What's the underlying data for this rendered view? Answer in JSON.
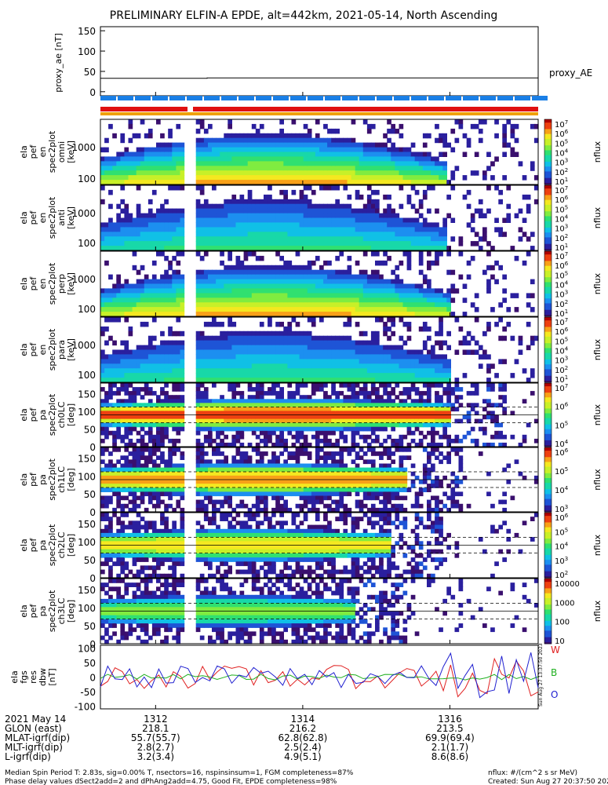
{
  "title": "PRELIMINARY ELFIN-A EPDE, alt=442km, 2021-05-14, North Ascending",
  "colors": {
    "bar_blue": "#1a7fe6",
    "bar_red": "#e01010",
    "bar_orange": "#f0a000",
    "line_red": "#e02020",
    "line_green": "#20b020",
    "line_blue": "#2020d0"
  },
  "chart_data": [
    {
      "type": "line",
      "panel": "proxy_ae",
      "ylabel": "proxy_ae [nT]",
      "ylim": [
        -10,
        160
      ],
      "yticks": [
        "150",
        "100",
        "50",
        "0"
      ],
      "legend": "proxy_AE",
      "series": [
        {
          "name": "proxy_AE",
          "x": [
            1311.25,
            1312.7,
            1312.7,
            1317.2
          ],
          "values": [
            33,
            33,
            34,
            34
          ]
        }
      ]
    },
    {
      "type": "heatmap",
      "panel": "energy spectrogram omni",
      "ylabel": [
        "ela",
        "pef",
        "en",
        "spec2plot",
        "omni",
        "[keV]"
      ],
      "yticks": [
        "1000",
        "100"
      ],
      "colorbar": {
        "label": "nflux",
        "ticks": [
          "10^7",
          "10^6",
          "10^5",
          "10^4",
          "10^3",
          "10^2",
          "10^1"
        ]
      }
    },
    {
      "type": "heatmap",
      "panel": "energy spectrogram anti",
      "ylabel": [
        "ela",
        "pef",
        "en",
        "spec2plot",
        "anti",
        "[keV]"
      ],
      "yticks": [
        "1000",
        "100"
      ],
      "colorbar": {
        "label": "nflux",
        "ticks": [
          "10^7",
          "10^6",
          "10^5",
          "10^4",
          "10^3",
          "10^2",
          "10^1"
        ]
      }
    },
    {
      "type": "heatmap",
      "panel": "energy spectrogram perp",
      "ylabel": [
        "ela",
        "pef",
        "en",
        "spec2plot",
        "perp",
        "[keV]"
      ],
      "yticks": [
        "1000",
        "100"
      ],
      "colorbar": {
        "label": "nflux",
        "ticks": [
          "10^7",
          "10^6",
          "10^5",
          "10^4",
          "10^3",
          "10^2",
          "10^1"
        ]
      }
    },
    {
      "type": "heatmap",
      "panel": "energy spectrogram para",
      "ylabel": [
        "ela",
        "pef",
        "en",
        "spec2plot",
        "para",
        "[keV]"
      ],
      "yticks": [
        "1000",
        "100"
      ],
      "colorbar": {
        "label": "nflux",
        "ticks": [
          "10^7",
          "10^6",
          "10^5",
          "10^4",
          "10^3",
          "10^2",
          "10^1"
        ]
      }
    },
    {
      "type": "heatmap",
      "panel": "pitch angle ch0",
      "ylabel": [
        "ela",
        "pef",
        "pa",
        "spec2plot",
        "ch0LC",
        "[deg]"
      ],
      "yticks": [
        "150",
        "100",
        "50",
        "0"
      ],
      "colorbar": {
        "label": "nflux",
        "ticks": [
          "10^7",
          "10^6",
          "10^5",
          "10^4"
        ]
      }
    },
    {
      "type": "heatmap",
      "panel": "pitch angle ch1",
      "ylabel": [
        "ela",
        "pef",
        "pa",
        "spec2plot",
        "ch1LC",
        "[deg]"
      ],
      "yticks": [
        "150",
        "100",
        "50",
        "0"
      ],
      "colorbar": {
        "label": "nflux",
        "ticks": [
          "10^6",
          "10^5",
          "10^4",
          "10^3"
        ]
      }
    },
    {
      "type": "heatmap",
      "panel": "pitch angle ch2",
      "ylabel": [
        "ela",
        "pef",
        "pa",
        "spec2plot",
        "ch2LC",
        "[deg]"
      ],
      "yticks": [
        "150",
        "100",
        "50",
        "0"
      ],
      "colorbar": {
        "label": "nflux",
        "ticks": [
          "10^6",
          "10^5",
          "10^4",
          "10^3",
          "10^2"
        ]
      }
    },
    {
      "type": "heatmap",
      "panel": "pitch angle ch3",
      "ylabel": [
        "ela",
        "pef",
        "pa",
        "spec2plot",
        "ch3LC",
        "[deg]"
      ],
      "yticks": [
        "150",
        "100",
        "50",
        "0"
      ],
      "colorbar": {
        "label": "nflux",
        "ticks": [
          "10000",
          "1000",
          "100",
          "10"
        ]
      }
    },
    {
      "type": "line",
      "panel": "fgs residuals",
      "ylabel": [
        "ela",
        "fgs",
        "res",
        "dbw",
        "[nT]"
      ],
      "ylim": [
        -110,
        110
      ],
      "yticks": [
        "100",
        "50",
        "0",
        "-50",
        "-100"
      ],
      "legend": [
        "W",
        "B",
        "O"
      ],
      "series": [
        {
          "name": "W"
        },
        {
          "name": "B"
        },
        {
          "name": "O"
        }
      ]
    }
  ],
  "xaxis": {
    "ticks": [
      "1312",
      "1314",
      "1316"
    ],
    "tick_values": [
      1312,
      1314,
      1316
    ],
    "range": [
      1311.25,
      1317.2
    ],
    "rows": [
      {
        "label": "2021 May 14",
        "values": [
          "1312",
          "1314",
          "1316"
        ]
      },
      {
        "label": "GLON (east)",
        "values": [
          "218.1",
          "216.2",
          "213.5"
        ]
      },
      {
        "label": "MLAT-igrf(dip)",
        "values": [
          "55.7(55.7)",
          "62.8(62.8)",
          "69.9(69.4)"
        ]
      },
      {
        "label": "MLT-igrf(dip)",
        "values": [
          "2.8(2.7)",
          "2.5(2.4)",
          "2.1(1.7)"
        ]
      },
      {
        "label": "L-igrf(dip)",
        "values": [
          "3.2(3.4)",
          "4.9(5.1)",
          "8.6(8.6)"
        ]
      }
    ]
  },
  "footer": {
    "line1": "Median Spin Period T: 2.83s, sig=0.00% T, nsectors=16, nspinsinsum=1, FGM completeness=87%",
    "line2": "Phase delay values dSect2add=2 and dPhAng2add=4.75, Good Fit, EPDE completeness=98%",
    "units": "nflux: #/(cm^2 s sr MeV)",
    "created": "Created: Sun Aug 27 20:37:50 2023",
    "stamp": "Sun Aug 27 13:37:50 2023"
  }
}
